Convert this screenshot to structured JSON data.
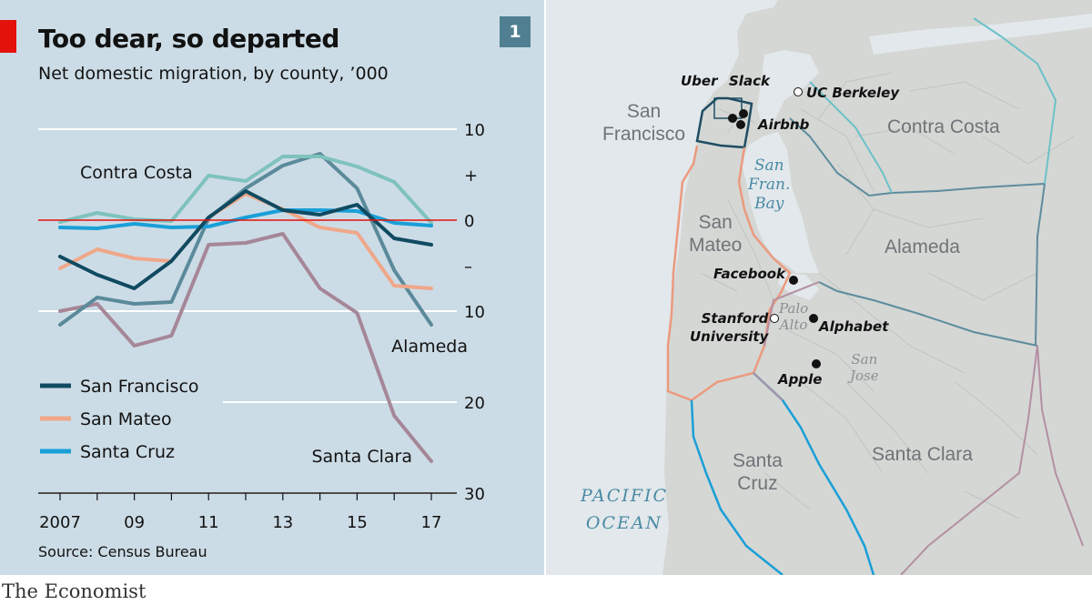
{
  "chart_data": {
    "type": "line",
    "title": "Too dear, so departed",
    "subtitle": "Net domestic migration, by county, ’000",
    "badge": "1",
    "source": "Source: Census Bureau",
    "x": [
      2007,
      2008,
      2009,
      2010,
      2011,
      2012,
      2013,
      2014,
      2015,
      2016,
      2017
    ],
    "x_tick_labels": [
      "2007",
      "09",
      "11",
      "13",
      "15",
      "17"
    ],
    "x_tick_values": [
      2007,
      2009,
      2011,
      2013,
      2015,
      2017
    ],
    "y_tick_labels": [
      "10",
      "+",
      "0",
      "–",
      "10",
      "20",
      "30"
    ],
    "y_tick_values": [
      10,
      5,
      0,
      -5,
      -10,
      -20,
      -30
    ],
    "ylim": [
      -30,
      10
    ],
    "y_inverted_note": "values below zero are net outflows",
    "legend": [
      "San Francisco",
      "San Mateo",
      "Santa Cruz"
    ],
    "series": [
      {
        "name": "Santa Clara",
        "color": "#a58797",
        "label_pos": "end",
        "values": [
          -10,
          -9.2,
          -13.8,
          -12.7,
          -2.7,
          -2.5,
          -1.5,
          -7.5,
          -10.2,
          -21.5,
          -26.5
        ]
      },
      {
        "name": "Alameda",
        "color": "#5b8a9a",
        "label_pos": "end",
        "values": [
          -11.5,
          -8.5,
          -9.2,
          -9.0,
          0.2,
          3.5,
          6.0,
          7.3,
          3.5,
          -5.5,
          -11.5
        ]
      },
      {
        "name": "San Mateo",
        "color": "#efa789",
        "label_pos": "legend",
        "values": [
          -5.3,
          -3.2,
          -4.2,
          -4.5,
          0.3,
          2.9,
          1.2,
          -0.8,
          -1.4,
          -7.2,
          -7.5
        ]
      },
      {
        "name": "Contra Costa",
        "color": "#7fc2bd",
        "label_pos": "start",
        "values": [
          -0.2,
          0.8,
          0.1,
          -0.1,
          4.9,
          4.3,
          7.0,
          7.0,
          5.9,
          4.2,
          -0.3
        ]
      },
      {
        "name": "Santa Cruz",
        "color": "#1a9fd8",
        "label_pos": "legend",
        "values": [
          -0.8,
          -0.9,
          -0.4,
          -0.8,
          -0.7,
          0.3,
          1.1,
          1.1,
          1.0,
          -0.3,
          -0.6
        ]
      },
      {
        "name": "San Francisco",
        "color": "#0f4a61",
        "label_pos": "legend",
        "values": [
          -4.0,
          -6.0,
          -7.5,
          -4.5,
          0.3,
          3.2,
          1.1,
          0.6,
          1.7,
          -2.0,
          -2.7
        ]
      }
    ]
  },
  "map": {
    "water_labels": [
      "San",
      "Fran.",
      "Bay"
    ],
    "ocean_labels": [
      "PACIFIC",
      "OCEAN"
    ],
    "counties": [
      {
        "lines": [
          "San",
          "Francisco"
        ]
      },
      {
        "lines": [
          "Contra Costa"
        ]
      },
      {
        "lines": [
          "San",
          "Mateo"
        ]
      },
      {
        "lines": [
          "Alameda"
        ]
      },
      {
        "lines": [
          "Santa Clara"
        ]
      },
      {
        "lines": [
          "Santa",
          "Cruz"
        ]
      }
    ],
    "cities": [
      {
        "lines": [
          "Palo",
          "Alto"
        ]
      },
      {
        "lines": [
          "San",
          "Jose"
        ]
      }
    ],
    "places": [
      {
        "label": "Uber",
        "type": "company"
      },
      {
        "label": "Slack",
        "type": "company"
      },
      {
        "label": "Airbnb",
        "type": "company"
      },
      {
        "label": "UC Berkeley",
        "type": "university"
      },
      {
        "label": "Facebook",
        "type": "company"
      },
      {
        "label": "Stanford University",
        "lines": [
          "Stanford",
          "University"
        ],
        "type": "university"
      },
      {
        "label": "Alphabet",
        "type": "company"
      },
      {
        "label": "Apple",
        "type": "company"
      }
    ],
    "colors": {
      "land": "#d4d7d4",
      "water": "#e2e8eb",
      "roads": "#bfc3c0",
      "san_francisco": "#1f4d63",
      "san_mateo": "#eb9a7f",
      "santa_cruz": "#1a9fd8",
      "alameda": "#5e8c9e",
      "contra_costa": "#6cc1c9",
      "santa_clara": "#b48fa2"
    }
  },
  "footer": "The Economist"
}
